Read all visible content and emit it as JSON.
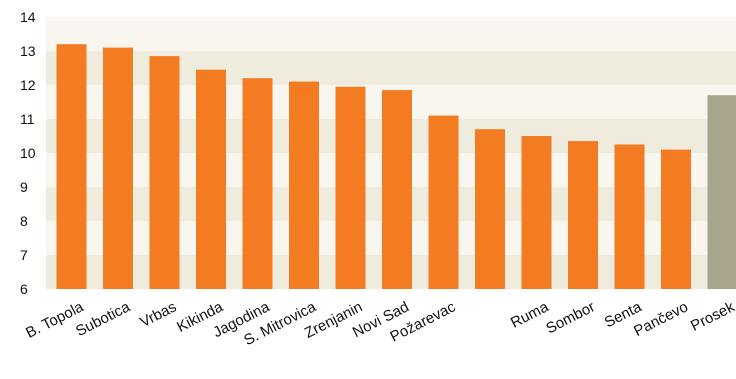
{
  "chart_data": {
    "type": "bar",
    "title": "",
    "xlabel": "",
    "ylabel": "",
    "ylim": [
      6,
      14
    ],
    "y_ticks": [
      "6",
      "7",
      "8",
      "9",
      "10",
      "11",
      "12",
      "13",
      "14"
    ],
    "grid": "alternating horizontal bands",
    "legend": "none",
    "categories": [
      "B. Topola",
      "Subotica",
      "Vrbas",
      "Kikinda",
      "Jagodina",
      "S. Mitrovica",
      "Zrenjanin",
      "Novi Sad",
      "Požarevac",
      "",
      "Ruma",
      "Sombor",
      "Senta",
      "Pančevo",
      "Prosek"
    ],
    "values": [
      13.2,
      13.1,
      12.85,
      12.45,
      12.2,
      12.1,
      11.95,
      11.85,
      11.1,
      10.7,
      10.5,
      10.35,
      10.25,
      10.1,
      11.7
    ],
    "colors": {
      "bar": "#F37C22",
      "highlight_bar": "#A9A48E",
      "band_light": "#F8F6EE",
      "band_dark": "#EFEBDD",
      "text": "#111111"
    },
    "highlight_category": "Prosek"
  }
}
